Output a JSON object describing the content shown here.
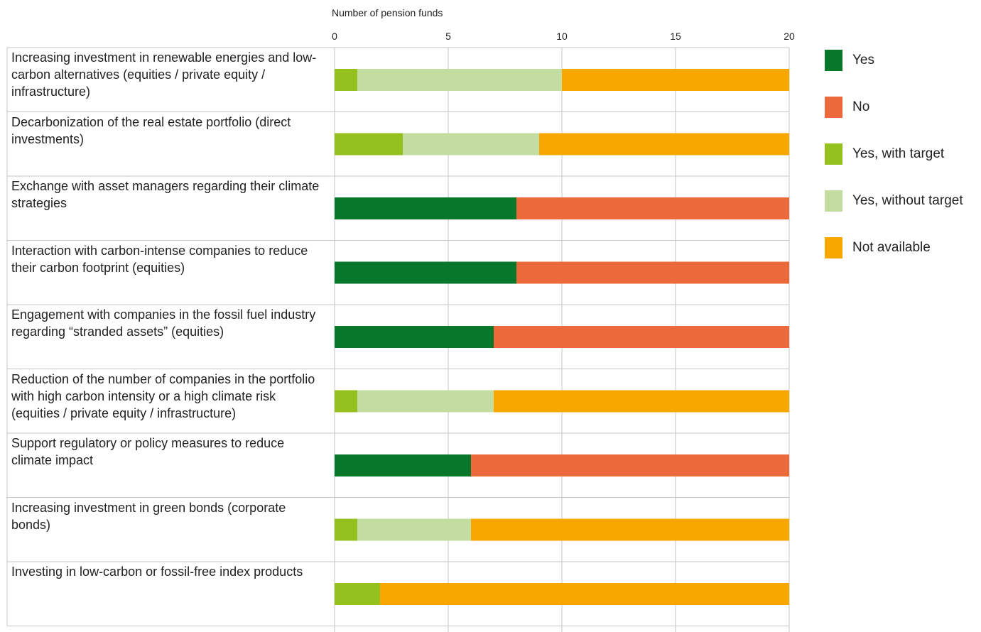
{
  "chart_data": {
    "type": "bar",
    "orientation": "horizontal",
    "stacked": true,
    "xlabel": "Number of pension funds",
    "xlim": [
      0,
      20
    ],
    "xticks": [
      0,
      5,
      10,
      15,
      20
    ],
    "grid": true,
    "legend_position": "right",
    "categories": [
      "Increasing investment in renewable energies and low-carbon alternatives (equities / private equity / infrastructure)",
      "Decarbonization of the real estate portfolio (direct investments)",
      "Exchange with asset managers regarding their climate strategies",
      "Interaction with carbon-intense companies to reduce their carbon footprint (equities)",
      "Engagement with companies in the fossil fuel industry regarding “stranded assets” (equities)",
      "Reduction of the number of companies in the portfolio with high carbon intensity or a high climate risk (equities / private equity / infrastructure)",
      "Support regulatory or policy measures to reduce climate impact",
      "Increasing investment in green bonds (corporate bonds)",
      "Investing in low-carbon or fossil-free index products"
    ],
    "series": [
      {
        "name": "Yes",
        "color": "#07782a",
        "values": [
          0,
          0,
          8,
          8,
          7,
          0,
          6,
          0,
          0
        ]
      },
      {
        "name": "No",
        "color": "#eb693a",
        "values": [
          0,
          0,
          12,
          12,
          13,
          0,
          14,
          0,
          0
        ]
      },
      {
        "name": "Yes, with target",
        "color": "#95c11f",
        "values": [
          1,
          3,
          0,
          0,
          0,
          1,
          0,
          1,
          2
        ]
      },
      {
        "name": "Yes, without target",
        "color": "#c3dc9f",
        "values": [
          9,
          6,
          0,
          0,
          0,
          6,
          0,
          5,
          0
        ]
      },
      {
        "name": "Not available",
        "color": "#f7a700",
        "values": [
          10,
          11,
          0,
          0,
          0,
          13,
          0,
          14,
          18
        ]
      }
    ]
  }
}
